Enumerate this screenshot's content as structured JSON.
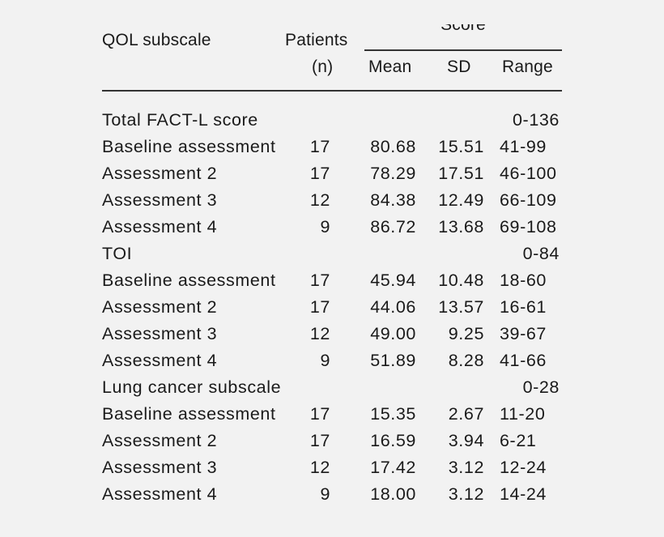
{
  "table": {
    "header": {
      "qol_subscale": "QOL subscale",
      "patients": "Patients",
      "patients_unit": "(n)",
      "score": "Score",
      "mean": "Mean",
      "sd": "SD",
      "range": "Range"
    },
    "sections": [
      {
        "title": "Total FACT-L score",
        "range": "0-136",
        "rows": [
          {
            "label": "Baseline assessment",
            "n": "17",
            "mean": "80.68",
            "sd": "15.51",
            "range": "41-99"
          },
          {
            "label": "Assessment 2",
            "n": "17",
            "mean": "78.29",
            "sd": "17.51",
            "range": "46-100"
          },
          {
            "label": "Assessment 3",
            "n": "12",
            "mean": "84.38",
            "sd": "12.49",
            "range": "66-109"
          },
          {
            "label": "Assessment 4",
            "n": "9",
            "mean": "86.72",
            "sd": "13.68",
            "range": "69-108"
          }
        ]
      },
      {
        "title": "TOI",
        "range": "0-84",
        "rows": [
          {
            "label": "Baseline assessment",
            "n": "17",
            "mean": "45.94",
            "sd": "10.48",
            "range": "18-60"
          },
          {
            "label": "Assessment 2",
            "n": "17",
            "mean": "44.06",
            "sd": "13.57",
            "range": "16-61"
          },
          {
            "label": "Assessment 3",
            "n": "12",
            "mean": "49.00",
            "sd": "9.25",
            "range": "39-67"
          },
          {
            "label": "Assessment 4",
            "n": "9",
            "mean": "51.89",
            "sd": "8.28",
            "range": "41-66"
          }
        ]
      },
      {
        "title": "Lung cancer subscale",
        "range": "0-28",
        "rows": [
          {
            "label": "Baseline assessment",
            "n": "17",
            "mean": "15.35",
            "sd": "2.67",
            "range": "11-20"
          },
          {
            "label": "Assessment 2",
            "n": "17",
            "mean": "16.59",
            "sd": "3.94",
            "range": "6-21"
          },
          {
            "label": "Assessment 3",
            "n": "12",
            "mean": "17.42",
            "sd": "3.12",
            "range": "12-24"
          },
          {
            "label": "Assessment 4",
            "n": "9",
            "mean": "18.00",
            "sd": "3.12",
            "range": "14-24"
          }
        ]
      }
    ]
  }
}
